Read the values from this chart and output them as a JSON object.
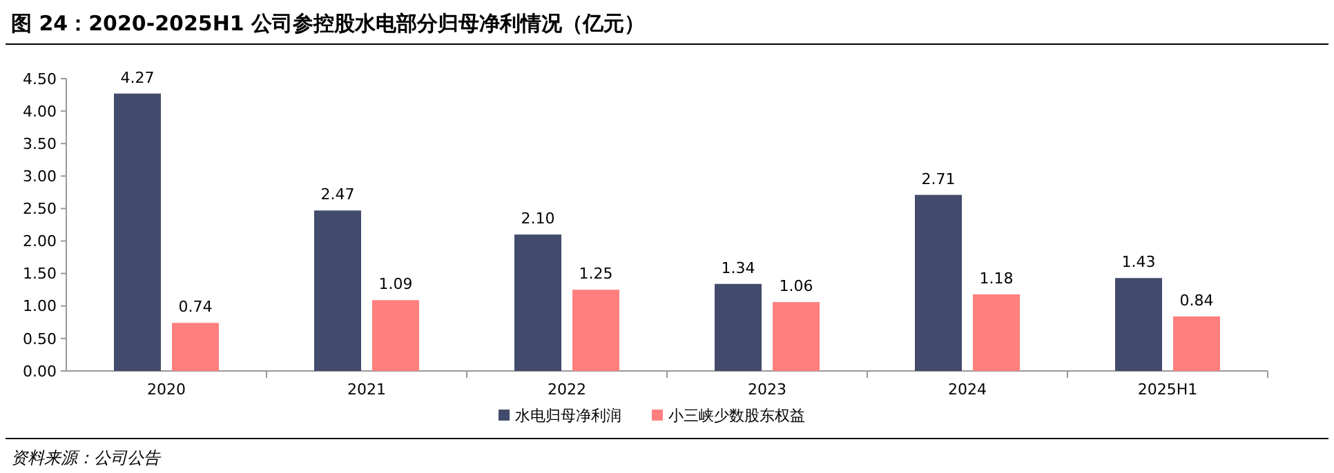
{
  "chart_data": {
    "type": "bar",
    "title": "图 24：2020-2025H1 公司参控股水电部分归母净利情况（亿元）",
    "categories": [
      "2020",
      "2021",
      "2022",
      "2023",
      "2024",
      "2025H1"
    ],
    "series": [
      {
        "name": "水电归母净利润",
        "color": "#424b6b",
        "values": [
          4.27,
          2.47,
          2.1,
          1.34,
          2.71,
          1.43
        ]
      },
      {
        "name": "小三峡少数股东权益",
        "color": "#ff7f7f",
        "values": [
          0.74,
          1.09,
          1.25,
          1.06,
          1.18,
          0.84
        ]
      }
    ],
    "value_labels": [
      [
        "4.27",
        "2.47",
        "2.10",
        "1.34",
        "2.71",
        "1.43"
      ],
      [
        "0.74",
        "1.09",
        "1.25",
        "1.06",
        "1.18",
        "0.84"
      ]
    ],
    "ylim": [
      0,
      4.5
    ],
    "yticks": [
      {
        "value": 0,
        "label": "0.00"
      },
      {
        "value": 0.5,
        "label": "0.50"
      },
      {
        "value": 1,
        "label": "1.00"
      },
      {
        "value": 1.5,
        "label": "1.50"
      },
      {
        "value": 2,
        "label": "2.00"
      },
      {
        "value": 2.5,
        "label": "2.50"
      },
      {
        "value": 3,
        "label": "3.00"
      },
      {
        "value": 3.5,
        "label": "3.50"
      },
      {
        "value": 4,
        "label": "4.00"
      },
      {
        "value": 4.5,
        "label": "4.50"
      }
    ],
    "grid": false,
    "legend": "bottom",
    "annotations": [
      "资料来源：公司公告"
    ]
  }
}
